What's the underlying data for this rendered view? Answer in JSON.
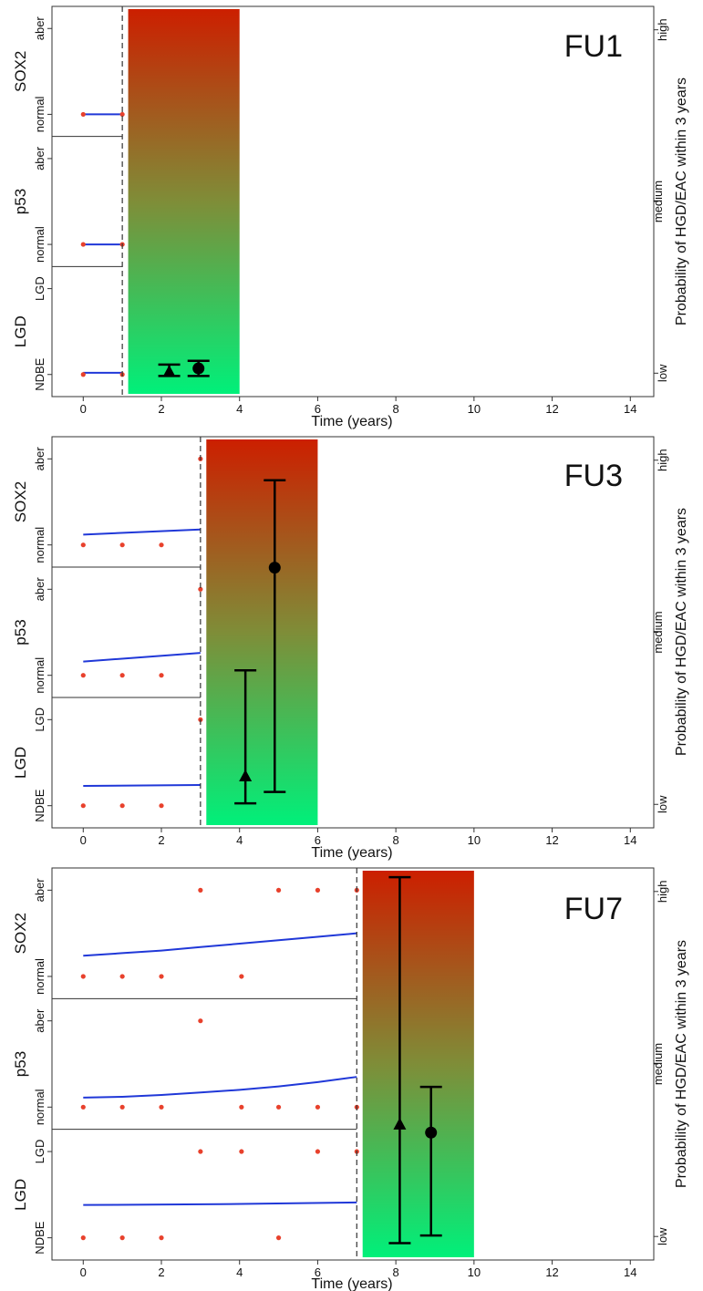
{
  "chart_data": [
    {
      "type": "line",
      "title": "FU1",
      "xlabel": "Time (years)",
      "right_label": "Probability of HGD/EAC within 3 years",
      "right_ticks": [
        "low",
        "medium",
        "high"
      ],
      "x_ticks": [
        0,
        2,
        4,
        6,
        8,
        10,
        12,
        14
      ],
      "xlim": [
        -0.8,
        14.6
      ],
      "cutoff": 1,
      "gradient_band": {
        "x": [
          1.15,
          4
        ],
        "top_color": "#cc1f00",
        "bottom_color": "#00f07a"
      },
      "grid": false,
      "legend": "none",
      "panels": [
        {
          "name": "SOX2",
          "levels": [
            "normal",
            "aber"
          ],
          "points": [
            {
              "x": 0,
              "y": "normal"
            },
            {
              "x": 1,
              "y": "normal"
            }
          ],
          "trend": [
            [
              0,
              0.0
            ],
            [
              1,
              0.0
            ]
          ]
        },
        {
          "name": "p53",
          "levels": [
            "normal",
            "aber"
          ],
          "points": [
            {
              "x": 0,
              "y": "normal"
            },
            {
              "x": 1,
              "y": "normal"
            }
          ],
          "trend": [
            [
              0,
              0.0
            ],
            [
              1,
              0.0
            ]
          ]
        },
        {
          "name": "LGD",
          "levels": [
            "NDBE",
            "LGD"
          ],
          "points": [
            {
              "x": 0,
              "y": "NDBE"
            },
            {
              "x": 1,
              "y": "NDBE"
            }
          ],
          "trend": [
            [
              0,
              0.02
            ],
            [
              1,
              0.02
            ]
          ]
        }
      ],
      "estimates": [
        {
          "marker": "triangle",
          "x": 2.2,
          "y": 0.05,
          "lower": 0.04,
          "upper": 0.07
        },
        {
          "marker": "circle",
          "x": 2.95,
          "y": 0.06,
          "lower": 0.04,
          "upper": 0.08
        }
      ]
    },
    {
      "type": "line",
      "title": "FU3",
      "xlabel": "Time (years)",
      "right_label": "Probability of HGD/EAC within 3 years",
      "right_ticks": [
        "low",
        "medium",
        "high"
      ],
      "x_ticks": [
        0,
        2,
        4,
        6,
        8,
        10,
        12,
        14
      ],
      "xlim": [
        -0.8,
        14.6
      ],
      "cutoff": 3,
      "gradient_band": {
        "x": [
          3.15,
          6
        ],
        "top_color": "#cc1f00",
        "bottom_color": "#00f07a"
      },
      "grid": false,
      "legend": "none",
      "panels": [
        {
          "name": "SOX2",
          "levels": [
            "normal",
            "aber"
          ],
          "points": [
            {
              "x": 0,
              "y": "normal"
            },
            {
              "x": 1,
              "y": "normal"
            },
            {
              "x": 2,
              "y": "normal"
            },
            {
              "x": 3,
              "y": "aber"
            }
          ],
          "trend": [
            [
              0,
              0.12
            ],
            [
              3,
              0.18
            ]
          ]
        },
        {
          "name": "p53",
          "levels": [
            "normal",
            "aber"
          ],
          "points": [
            {
              "x": 0,
              "y": "normal"
            },
            {
              "x": 1,
              "y": "normal"
            },
            {
              "x": 2,
              "y": "normal"
            },
            {
              "x": 3,
              "y": "aber"
            }
          ],
          "trend": [
            [
              0,
              0.16
            ],
            [
              3,
              0.26
            ]
          ]
        },
        {
          "name": "LGD",
          "levels": [
            "NDBE",
            "LGD"
          ],
          "points": [
            {
              "x": 0,
              "y": "NDBE"
            },
            {
              "x": 1,
              "y": "NDBE"
            },
            {
              "x": 2,
              "y": "NDBE"
            },
            {
              "x": 3,
              "y": "LGD"
            }
          ],
          "trend": [
            [
              0,
              0.23
            ],
            [
              3,
              0.24
            ]
          ]
        }
      ],
      "estimates": [
        {
          "marker": "triangle",
          "x": 4.15,
          "y": 0.12,
          "lower": 0.05,
          "upper": 0.4
        },
        {
          "marker": "circle",
          "x": 4.9,
          "y": 0.67,
          "lower": 0.08,
          "upper": 0.9
        }
      ]
    },
    {
      "type": "line",
      "title": "FU7",
      "xlabel": "Time (years)",
      "right_label": "Probability of HGD/EAC within 3 years",
      "right_ticks": [
        "low",
        "medium",
        "high"
      ],
      "x_ticks": [
        0,
        2,
        4,
        6,
        8,
        10,
        12,
        14
      ],
      "xlim": [
        -0.8,
        14.6
      ],
      "cutoff": 7,
      "gradient_band": {
        "x": [
          7.15,
          10
        ],
        "top_color": "#cc1f00",
        "bottom_color": "#00f07a"
      },
      "grid": false,
      "legend": "none",
      "panels": [
        {
          "name": "SOX2",
          "levels": [
            "normal",
            "aber"
          ],
          "points": [
            {
              "x": 0,
              "y": "normal"
            },
            {
              "x": 1,
              "y": "normal"
            },
            {
              "x": 2,
              "y": "normal"
            },
            {
              "x": 3,
              "y": "aber"
            },
            {
              "x": 4.05,
              "y": "normal"
            },
            {
              "x": 5,
              "y": "aber"
            },
            {
              "x": 6,
              "y": "aber"
            },
            {
              "x": 7,
              "y": "aber"
            }
          ],
          "trend": [
            [
              0,
              0.24
            ],
            [
              1,
              0.27
            ],
            [
              2,
              0.3
            ],
            [
              3,
              0.34
            ],
            [
              4,
              0.38
            ],
            [
              5,
              0.42
            ],
            [
              6,
              0.46
            ],
            [
              7,
              0.5
            ]
          ]
        },
        {
          "name": "p53",
          "levels": [
            "normal",
            "aber"
          ],
          "points": [
            {
              "x": 0,
              "y": "normal"
            },
            {
              "x": 1,
              "y": "normal"
            },
            {
              "x": 2,
              "y": "normal"
            },
            {
              "x": 3,
              "y": "aber"
            },
            {
              "x": 4.05,
              "y": "normal"
            },
            {
              "x": 5,
              "y": "normal"
            },
            {
              "x": 6,
              "y": "normal"
            },
            {
              "x": 7,
              "y": "normal"
            }
          ],
          "trend": [
            [
              0,
              0.11
            ],
            [
              1,
              0.12
            ],
            [
              2,
              0.14
            ],
            [
              3,
              0.17
            ],
            [
              4,
              0.2
            ],
            [
              5,
              0.24
            ],
            [
              6,
              0.29
            ],
            [
              7,
              0.35
            ]
          ]
        },
        {
          "name": "LGD",
          "levels": [
            "NDBE",
            "LGD"
          ],
          "points": [
            {
              "x": 0,
              "y": "NDBE"
            },
            {
              "x": 1,
              "y": "NDBE"
            },
            {
              "x": 2,
              "y": "NDBE"
            },
            {
              "x": 3,
              "y": "LGD"
            },
            {
              "x": 4.05,
              "y": "LGD"
            },
            {
              "x": 5,
              "y": "NDBE"
            },
            {
              "x": 6,
              "y": "LGD"
            },
            {
              "x": 7,
              "y": "LGD"
            }
          ],
          "trend": [
            [
              0,
              0.38
            ],
            [
              3.5,
              0.39
            ],
            [
              7,
              0.41
            ]
          ]
        }
      ],
      "estimates": [
        {
          "marker": "triangle",
          "x": 8.1,
          "y": 0.34,
          "lower": 0.03,
          "upper": 0.99
        },
        {
          "marker": "circle",
          "x": 8.9,
          "y": 0.32,
          "lower": 0.05,
          "upper": 0.44
        }
      ]
    }
  ]
}
